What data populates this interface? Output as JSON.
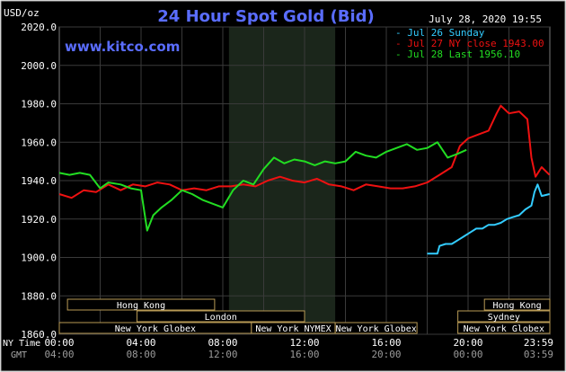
{
  "chart_data": {
    "type": "line",
    "title": "24 Hour Spot Gold (Bid)",
    "timestamp": "July 28, 2020 19:55",
    "watermark": "www.kitco.com",
    "unit_label": "USD/oz",
    "ylim": [
      1860,
      2020
    ],
    "y_ticks": [
      "2020.0",
      "2000.0",
      "1980.0",
      "1960.0",
      "1940.0",
      "1920.0",
      "1900.0",
      "1880.0",
      "1860.0"
    ],
    "x_axis_range_hours": [
      0,
      24
    ],
    "x_row_labels": {
      "ny": "NY Time",
      "gmt": "GMT"
    },
    "x_ticks_ny": [
      {
        "h": 0,
        "label": "00:00"
      },
      {
        "h": 4,
        "label": "04:00"
      },
      {
        "h": 8,
        "label": "08:00"
      },
      {
        "h": 12,
        "label": "12:00"
      },
      {
        "h": 16,
        "label": "16:00"
      },
      {
        "h": 20,
        "label": "20:00"
      },
      {
        "h": 23.983,
        "label": "23:59"
      }
    ],
    "x_ticks_gmt": [
      {
        "h": 0,
        "label": "04:00"
      },
      {
        "h": 4,
        "label": "08:00"
      },
      {
        "h": 8,
        "label": "12:00"
      },
      {
        "h": 12,
        "label": "16:00"
      },
      {
        "h": 16,
        "label": "20:00"
      },
      {
        "h": 20,
        "label": "00:00"
      },
      {
        "h": 23.983,
        "label": "03:59"
      }
    ],
    "highlight_band_hours": [
      8.3,
      13.5
    ],
    "grid": true,
    "legend_position": "top-right",
    "series": [
      {
        "name": "Jul 26 Sunday",
        "color": "#33ccff",
        "x": [
          18.0,
          18.5,
          18.6,
          18.9,
          19.2,
          19.5,
          19.8,
          20.1,
          20.4,
          20.7,
          21.0,
          21.3,
          21.6,
          21.9,
          22.2,
          22.5,
          22.8,
          23.1,
          23.25,
          23.4,
          23.6,
          23.983
        ],
        "y": [
          1902,
          1902,
          1906,
          1907,
          1907,
          1909,
          1911,
          1913,
          1915,
          1915,
          1917,
          1917,
          1918,
          1920,
          1921,
          1922,
          1925,
          1927,
          1934,
          1938,
          1932,
          1933
        ]
      },
      {
        "name": "Jul 27 NY close 1943.00",
        "color": "#ee1111",
        "x": [
          0,
          0.6,
          1.2,
          1.8,
          2.4,
          3.0,
          3.6,
          4.2,
          4.8,
          5.4,
          6.0,
          6.6,
          7.2,
          7.8,
          8.4,
          9.0,
          9.6,
          10.2,
          10.8,
          11.4,
          12.0,
          12.6,
          13.2,
          13.8,
          14.4,
          15.0,
          15.6,
          16.2,
          16.8,
          17.4,
          18.0,
          18.6,
          19.2,
          19.6,
          20.0,
          20.5,
          21.0,
          21.4,
          21.6,
          22.0,
          22.5,
          22.9,
          23.1,
          23.3,
          23.6,
          23.983
        ],
        "y": [
          1933,
          1931,
          1935,
          1934,
          1938,
          1935,
          1938,
          1937,
          1939,
          1938,
          1935,
          1936,
          1935,
          1937,
          1937,
          1938,
          1937,
          1940,
          1942,
          1940,
          1939,
          1941,
          1938,
          1937,
          1935,
          1938,
          1937,
          1936,
          1936,
          1937,
          1939,
          1943,
          1947,
          1958,
          1962,
          1964,
          1966,
          1975,
          1979,
          1975,
          1976,
          1972,
          1952,
          1942,
          1947,
          1943
        ]
      },
      {
        "name": "Jul 28 Last 1956.10",
        "color": "#22dd22",
        "x": [
          0,
          0.5,
          1.0,
          1.5,
          2.0,
          2.4,
          3.0,
          3.5,
          4.0,
          4.3,
          4.6,
          5.0,
          5.5,
          6.0,
          6.5,
          7.0,
          7.5,
          8.0,
          8.5,
          9.0,
          9.5,
          10.0,
          10.5,
          11.0,
          11.5,
          12.0,
          12.5,
          13.0,
          13.5,
          14.0,
          14.5,
          15.0,
          15.5,
          16.0,
          16.5,
          17.0,
          17.5,
          18.0,
          18.5,
          19.0,
          19.5,
          19.92
        ],
        "y": [
          1944,
          1943,
          1944,
          1943,
          1936,
          1939,
          1938,
          1936,
          1935,
          1914,
          1922,
          1926,
          1930,
          1935,
          1933,
          1930,
          1928,
          1926,
          1935,
          1940,
          1938,
          1946,
          1952,
          1949,
          1951,
          1950,
          1948,
          1950,
          1949,
          1950,
          1955,
          1953,
          1952,
          1955,
          1957,
          1959,
          1956,
          1957,
          1960,
          1952,
          1954,
          1956
        ]
      }
    ],
    "sessions": [
      {
        "label": "Hong Kong",
        "start": 0.4,
        "end": 7.6,
        "row": 0
      },
      {
        "label": "Hong Kong",
        "start": 20.8,
        "end": 24.0,
        "row": 0
      },
      {
        "label": "London",
        "start": 3.8,
        "end": 12.0,
        "row": 1
      },
      {
        "label": "Sydney",
        "start": 19.5,
        "end": 24.0,
        "row": 1
      },
      {
        "label": "New York Globex",
        "start": 0.0,
        "end": 9.4,
        "row": 2
      },
      {
        "label": "New York NYMEX",
        "start": 9.4,
        "end": 13.5,
        "row": 2
      },
      {
        "label": "New York Globex",
        "start": 13.5,
        "end": 17.5,
        "row": 2
      },
      {
        "label": "New York Globex",
        "start": 19.5,
        "end": 24.0,
        "row": 2
      }
    ]
  }
}
